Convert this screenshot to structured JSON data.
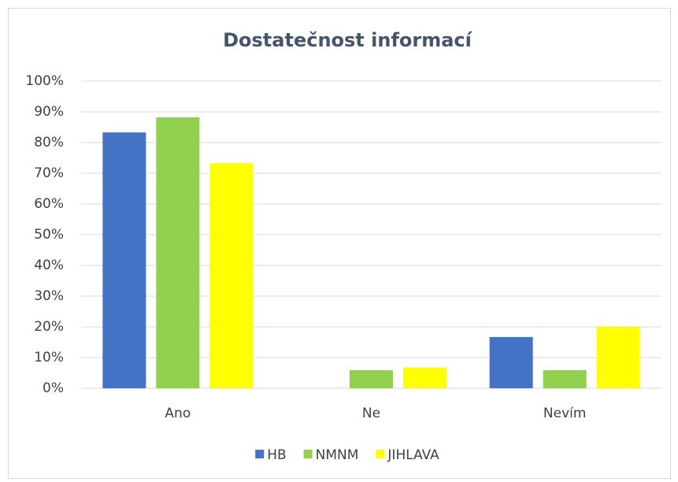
{
  "chart_data": {
    "type": "bar",
    "title": "Dostatečnost informací",
    "categories": [
      "Ano",
      "Ne",
      "Nevím"
    ],
    "series": [
      {
        "name": "HB",
        "color": "#4472c4",
        "values": [
          83.3,
          0,
          16.7
        ]
      },
      {
        "name": "NMNM",
        "color": "#92d050",
        "values": [
          88.2,
          5.9,
          5.9
        ]
      },
      {
        "name": "JIHLAVA",
        "color": "#ffff00",
        "values": [
          73.3,
          6.7,
          20
        ]
      }
    ],
    "ylim": [
      0,
      100
    ],
    "yticks": [
      {
        "value": 0,
        "label": "0%"
      },
      {
        "value": 10,
        "label": "10%"
      },
      {
        "value": 20,
        "label": "20%"
      },
      {
        "value": 30,
        "label": "30%"
      },
      {
        "value": 40,
        "label": "40%"
      },
      {
        "value": 50,
        "label": "50%"
      },
      {
        "value": 60,
        "label": "60%"
      },
      {
        "value": 70,
        "label": "70%"
      },
      {
        "value": 80,
        "label": "80%"
      },
      {
        "value": 90,
        "label": "90%"
      },
      {
        "value": 100,
        "label": "100%"
      }
    ],
    "grid": true,
    "legend": "bottom"
  }
}
